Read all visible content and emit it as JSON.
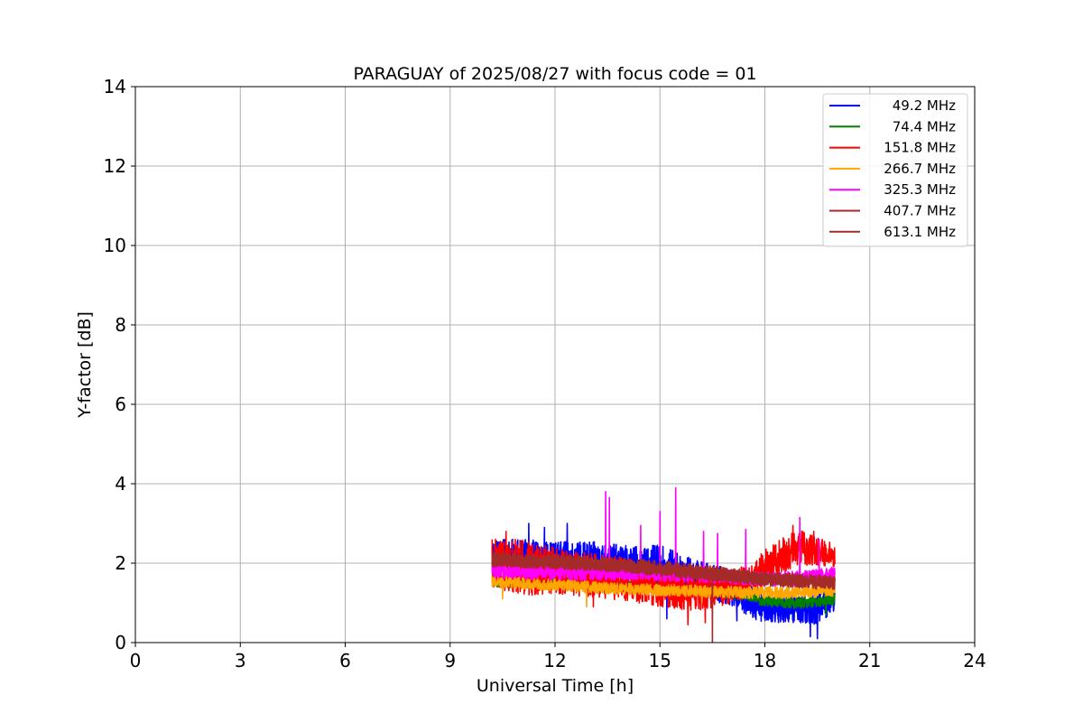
{
  "chart_data": {
    "type": "line",
    "title": "PARAGUAY of 2025/08/27 with focus code = 01",
    "xlabel": "Universal Time [h]",
    "ylabel": "Y-factor [dB]",
    "xlim": [
      0,
      24
    ],
    "ylim": [
      0,
      14
    ],
    "xticks": [
      0,
      3,
      6,
      9,
      12,
      15,
      18,
      21,
      24
    ],
    "yticks": [
      0,
      2,
      4,
      6,
      8,
      10,
      12,
      14
    ],
    "grid": true,
    "legend_position": "top-right",
    "series": [
      {
        "name": " 49.2 MHz",
        "color": "#0000ff",
        "x": [
          10.2,
          11.0,
          12.0,
          13.0,
          14.0,
          15.0,
          16.0,
          17.0,
          17.5,
          18.0,
          18.5,
          19.0,
          19.5,
          20.0
        ],
        "center": [
          2.3,
          2.2,
          2.1,
          2.1,
          2.0,
          1.85,
          1.6,
          1.4,
          1.1,
          0.9,
          0.85,
          0.85,
          0.85,
          1.1
        ],
        "spread": [
          0.3,
          0.4,
          0.45,
          0.45,
          0.45,
          0.6,
          0.5,
          0.45,
          0.45,
          0.4,
          0.35,
          0.35,
          0.4,
          0.3
        ],
        "spikes": [
          [
            11.25,
            3.0
          ],
          [
            12.35,
            3.0
          ],
          [
            11.7,
            2.9
          ],
          [
            17.2,
            0.55
          ],
          [
            19.5,
            0.1
          ],
          [
            19.3,
            0.15
          ],
          [
            15.2,
            0.6
          ],
          [
            18.3,
            0.65
          ]
        ]
      },
      {
        "name": " 74.4 MHz",
        "color": "#008000",
        "x": [
          10.2,
          12.0,
          14.0,
          16.0,
          17.5,
          18.0,
          19.0,
          20.0
        ],
        "center": [
          1.55,
          1.5,
          1.45,
          1.35,
          1.2,
          1.05,
          1.0,
          1.1
        ],
        "spread": [
          0.15,
          0.15,
          0.15,
          0.15,
          0.15,
          0.15,
          0.15,
          0.15
        ],
        "spikes": [
          [
            19.75,
            0.7
          ]
        ]
      },
      {
        "name": " 151.8 MHz",
        "color": "#ff0000",
        "x": [
          10.2,
          11.0,
          12.0,
          13.0,
          14.0,
          15.0,
          16.0,
          17.0,
          17.5,
          18.0,
          18.5,
          19.0,
          19.5,
          20.0
        ],
        "center": [
          2.0,
          1.9,
          1.8,
          1.7,
          1.6,
          1.45,
          1.35,
          1.4,
          1.55,
          1.9,
          2.2,
          2.4,
          2.3,
          2.2
        ],
        "spread": [
          0.6,
          0.7,
          0.6,
          0.55,
          0.55,
          0.55,
          0.55,
          0.45,
          0.4,
          0.45,
          0.45,
          0.45,
          0.35,
          0.3
        ],
        "spikes": [
          [
            10.2,
            2.6
          ],
          [
            10.6,
            2.8
          ],
          [
            16.3,
            0.5
          ],
          [
            15.8,
            0.45
          ],
          [
            18.8,
            2.95
          ],
          [
            19.4,
            2.8
          ],
          [
            13.1,
            0.9
          ]
        ]
      },
      {
        "name": " 266.7 MHz",
        "color": "#ffa500",
        "x": [
          10.2,
          12.0,
          14.0,
          16.0,
          18.0,
          20.0
        ],
        "center": [
          1.55,
          1.45,
          1.35,
          1.3,
          1.25,
          1.3
        ],
        "spread": [
          0.15,
          0.15,
          0.15,
          0.15,
          0.15,
          0.15
        ],
        "spikes": [
          [
            10.5,
            1.1
          ],
          [
            12.9,
            0.9
          ],
          [
            16.2,
            1.0
          ]
        ]
      },
      {
        "name": " 325.3 MHz",
        "color": "#ff00ff",
        "x": [
          10.2,
          12.0,
          14.0,
          16.0,
          18.0,
          19.0,
          20.0
        ],
        "center": [
          1.8,
          1.75,
          1.75,
          1.7,
          1.6,
          1.6,
          1.7
        ],
        "spread": [
          0.18,
          0.18,
          0.18,
          0.18,
          0.18,
          0.2,
          0.2
        ],
        "spikes": [
          [
            13.45,
            3.8
          ],
          [
            13.55,
            3.65
          ],
          [
            14.45,
            2.95
          ],
          [
            15.0,
            3.3
          ],
          [
            15.45,
            3.9
          ],
          [
            16.25,
            2.8
          ],
          [
            16.65,
            2.75
          ],
          [
            17.45,
            2.85
          ],
          [
            19.0,
            3.15
          ],
          [
            19.55,
            2.6
          ]
        ]
      },
      {
        "name": " 407.7 MHz",
        "color": "#a52a2a",
        "x": [
          10.2,
          12.0,
          14.0,
          16.0,
          18.0,
          20.0
        ],
        "center": [
          2.1,
          2.05,
          1.95,
          1.8,
          1.6,
          1.5
        ],
        "spread": [
          0.18,
          0.18,
          0.18,
          0.18,
          0.18,
          0.18
        ],
        "spikes": [
          [
            16.5,
            0.0
          ]
        ]
      },
      {
        "name": " 613.1 MHz",
        "color": "#a52a2a",
        "x": [
          10.2,
          12.0,
          14.0,
          16.0,
          18.0,
          20.0
        ],
        "center": [
          2.05,
          2.0,
          1.9,
          1.75,
          1.6,
          1.5
        ],
        "spread": [
          0.15,
          0.15,
          0.15,
          0.15,
          0.15,
          0.15
        ],
        "spikes": []
      }
    ]
  }
}
